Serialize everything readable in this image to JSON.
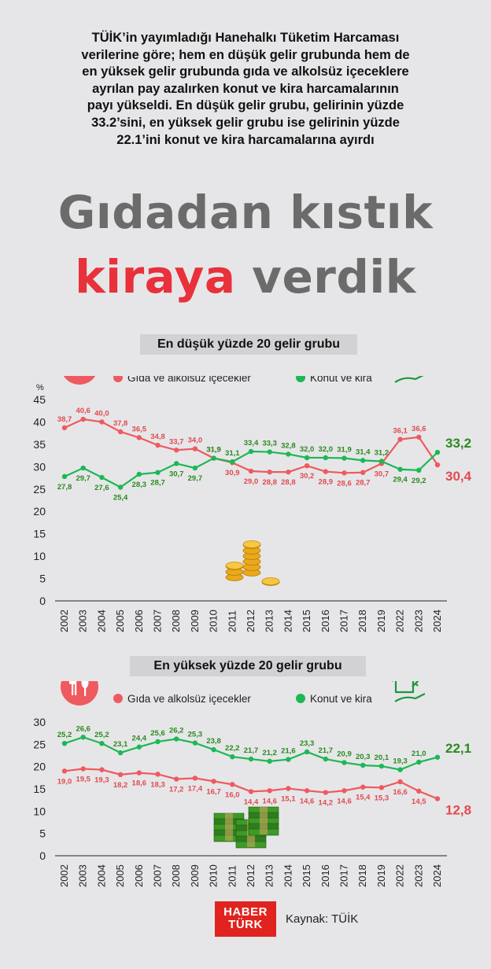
{
  "intro_lines": [
    "TÜİK’in yayımladığı Hanehalkı Tüketim Harcaması",
    "verilerine göre; hem en düşük gelir grubunda hem de",
    "en yüksek gelir grubunda gıda ve alkolsüz içeceklere",
    "ayrılan pay azalırken konut ve kira harcamalarının",
    "payı yükseldi. En düşük gelir grubu, gelirinin yüzde",
    "33.2’sini, en yüksek gelir grubu ise gelirinin yüzde",
    "22.1’ini konut ve kira harcamalarına ayırdı"
  ],
  "headline": {
    "line1": "Gıdadan kıstık",
    "highlight": "kiraya",
    "rest": " verdik"
  },
  "colors": {
    "red": "#ee5a5f",
    "green": "#1cb854",
    "darkgreen": "#2a8a1f",
    "red_label": "#e24a50",
    "axis": "#222222",
    "grid": "#bdbdbd"
  },
  "source": "Kaynak: TÜİK",
  "logo": {
    "line1": "HABER",
    "line2": "TÜRK"
  },
  "chart_data": [
    {
      "type": "line",
      "title": "En düşük yüzde 20 gelir grubu",
      "ylabel": "%",
      "ylim": [
        0,
        45
      ],
      "yticks": [
        0,
        5,
        10,
        15,
        20,
        25,
        30,
        35,
        40,
        45
      ],
      "grid": false,
      "legend_position": "top",
      "categories": [
        "2002",
        "2003",
        "2004",
        "2005",
        "2006",
        "2007",
        "2008",
        "2009",
        "2010",
        "2011",
        "2012",
        "2013",
        "2014",
        "2015",
        "2016",
        "2017",
        "2018",
        "2019",
        "2022",
        "2023",
        "2024"
      ],
      "series": [
        {
          "name": "Gıda ve alkolsüz içecekler",
          "color": "#ee5a5f",
          "values": [
            38.7,
            40.6,
            40.0,
            37.8,
            36.5,
            34.8,
            33.7,
            34.0,
            31.9,
            30.9,
            29.0,
            28.8,
            28.8,
            30.2,
            28.9,
            28.6,
            28.7,
            30.7,
            36.1,
            36.6,
            30.4
          ],
          "labels": [
            "38,7",
            "40,6",
            "40,0",
            "37,8",
            "36,5",
            "34,8",
            "33,7",
            "34,0",
            "31,9",
            "30,9",
            "29,0",
            "28,8",
            "28,8",
            "30,2",
            "28,9",
            "28,6",
            "28,7",
            "30,7",
            "36,1",
            "36,6",
            "30,4"
          ]
        },
        {
          "name": "Konut ve kira",
          "color": "#1cb854",
          "values": [
            27.8,
            29.7,
            27.6,
            25.4,
            28.3,
            28.7,
            30.7,
            29.7,
            31.9,
            31.1,
            33.4,
            33.3,
            32.8,
            32.0,
            32.0,
            31.9,
            31.4,
            31.2,
            29.4,
            29.2,
            33.2
          ],
          "labels": [
            "27,8",
            "29,7",
            "27,6",
            "25,4",
            "28,3",
            "28,7",
            "30,7",
            "29,7",
            "31,9",
            "31,1",
            "33,4",
            "33,3",
            "32,8",
            "32,0",
            "32,0",
            "31,9",
            "31,4",
            "31,2",
            "29,4",
            "29,2",
            "33,2"
          ]
        }
      ]
    },
    {
      "type": "line",
      "title": "En yüksek yüzde 20 gelir grubu",
      "ylabel": "",
      "ylim": [
        0,
        30
      ],
      "yticks": [
        0,
        5,
        10,
        15,
        20,
        25,
        30
      ],
      "grid": false,
      "legend_position": "top",
      "categories": [
        "2002",
        "2003",
        "2004",
        "2005",
        "2006",
        "2007",
        "2008",
        "2009",
        "2010",
        "2011",
        "2012",
        "2013",
        "2014",
        "2015",
        "2016",
        "2017",
        "2018",
        "2019",
        "2022",
        "2023",
        "2024"
      ],
      "series": [
        {
          "name": "Gıda ve alkolsüz içecekler",
          "color": "#ee5a5f",
          "values": [
            19.0,
            19.5,
            19.3,
            18.2,
            18.6,
            18.3,
            17.2,
            17.4,
            16.7,
            16.0,
            14.4,
            14.6,
            15.1,
            14.6,
            14.2,
            14.6,
            15.4,
            15.3,
            16.6,
            14.5,
            12.8
          ],
          "labels": [
            "19,0",
            "19,5",
            "19,3",
            "18,2",
            "18,6",
            "18,3",
            "17,2",
            "17,4",
            "16,7",
            "16,0",
            "14,4",
            "14,6",
            "15,1",
            "14,6",
            "14,2",
            "14,6",
            "15,4",
            "15,3",
            "16,6",
            "14,5",
            "12,8"
          ]
        },
        {
          "name": "Konut ve kira",
          "color": "#1cb854",
          "values": [
            25.2,
            26.6,
            25.2,
            23.1,
            24.4,
            25.6,
            26.2,
            25.3,
            23.8,
            22.2,
            21.7,
            21.2,
            21.6,
            23.3,
            21.7,
            20.9,
            20.3,
            20.1,
            19.3,
            21.0,
            22.1
          ],
          "labels": [
            "25,2",
            "26,6",
            "25,2",
            "23,1",
            "24,4",
            "25,6",
            "26,2",
            "25,3",
            "23,8",
            "22,2",
            "21,7",
            "21,2",
            "21,6",
            "23,3",
            "21,7",
            "20,9",
            "20,3",
            "20,1",
            "19,3",
            "21,0",
            "22,1"
          ]
        }
      ]
    }
  ]
}
